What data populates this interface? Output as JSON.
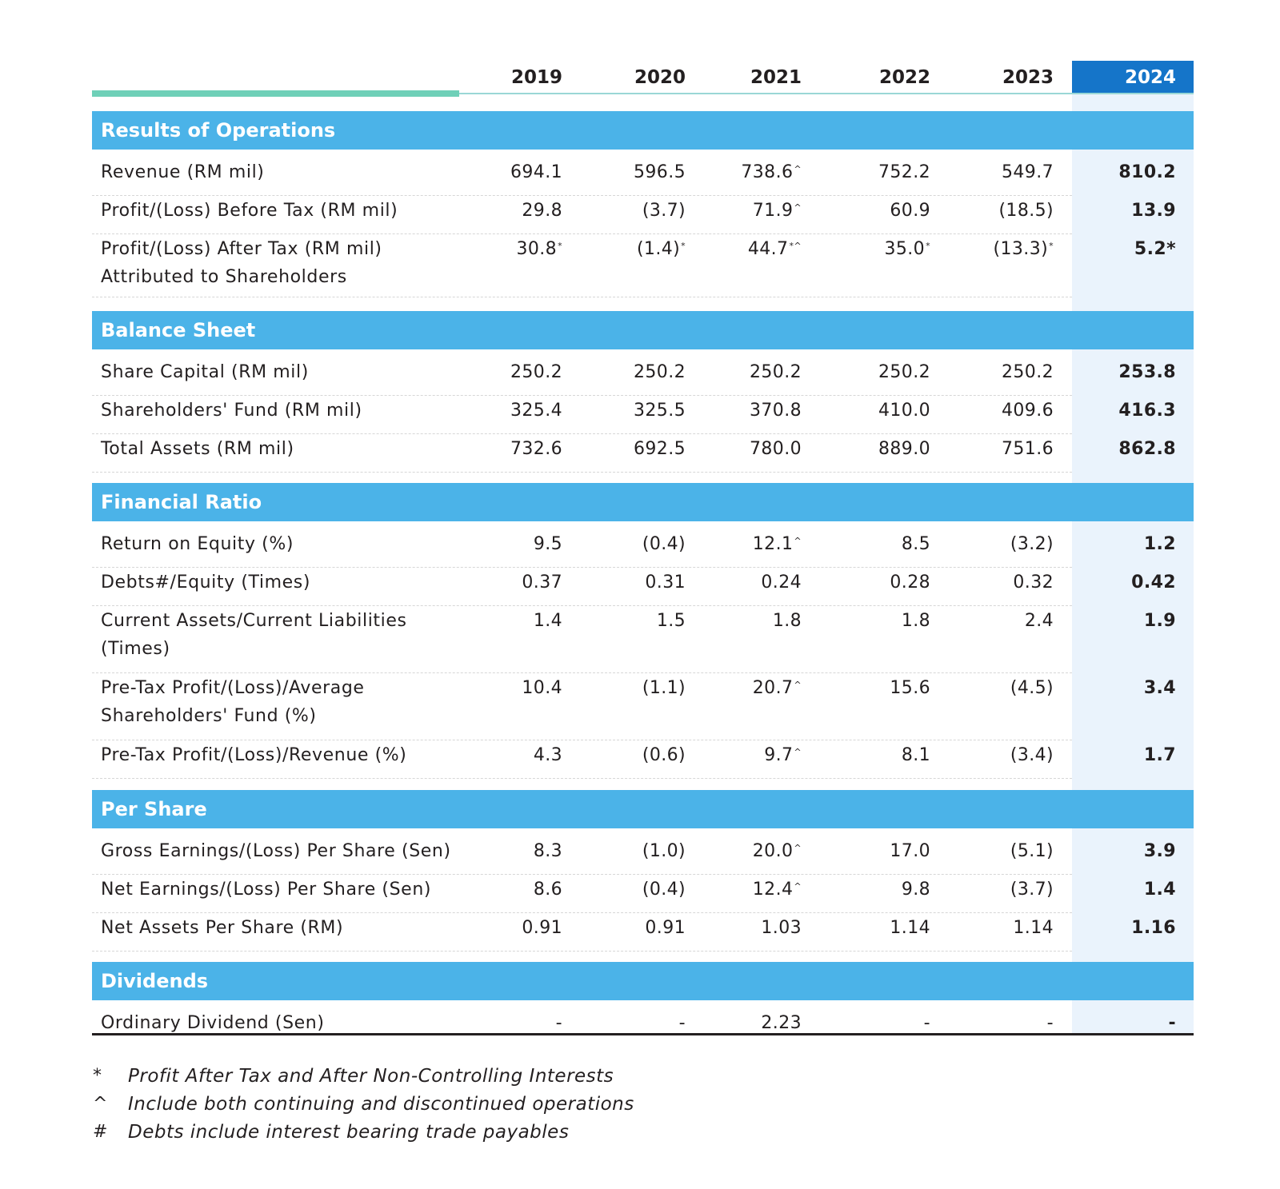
{
  "years": [
    "2019",
    "2020",
    "2021",
    "2022",
    "2023",
    "2024"
  ],
  "sections": [
    {
      "title": "Results of Operations",
      "rows": [
        {
          "label": "Revenue (RM mil)",
          "values": [
            "694.1",
            "596.5",
            "738.6",
            "752.2",
            "549.7",
            "810.2"
          ],
          "sups": [
            "",
            "",
            "^",
            "",
            "",
            ""
          ]
        },
        {
          "label": "Profit/(Loss) Before Tax (RM mil)",
          "values": [
            "29.8",
            "(3.7)",
            "71.9",
            "60.9",
            "(18.5)",
            "13.9"
          ],
          "sups": [
            "",
            "",
            "^",
            "",
            "",
            ""
          ]
        },
        {
          "label": "Profit/(Loss) After Tax (RM mil)\nAttributed to Shareholders",
          "values": [
            "30.8",
            "(1.4)",
            "44.7",
            "35.0",
            "(13.3)",
            "5.2*"
          ],
          "sups": [
            "*",
            "*",
            "*^",
            "*",
            "*",
            ""
          ]
        }
      ]
    },
    {
      "title": "Balance Sheet",
      "rows": [
        {
          "label": "Share Capital (RM mil)",
          "values": [
            "250.2",
            "250.2",
            "250.2",
            "250.2",
            "250.2",
            "253.8"
          ],
          "sups": [
            "",
            "",
            "",
            "",
            "",
            ""
          ]
        },
        {
          "label": "Shareholders' Fund (RM mil)",
          "values": [
            "325.4",
            "325.5",
            "370.8",
            "410.0",
            "409.6",
            "416.3"
          ],
          "sups": [
            "",
            "",
            "",
            "",
            "",
            ""
          ]
        },
        {
          "label": "Total Assets (RM mil)",
          "values": [
            "732.6",
            "692.5",
            "780.0",
            "889.0",
            "751.6",
            "862.8"
          ],
          "sups": [
            "",
            "",
            "",
            "",
            "",
            ""
          ]
        }
      ]
    },
    {
      "title": "Financial Ratio",
      "rows": [
        {
          "label": "Return on Equity (%)",
          "values": [
            "9.5",
            "(0.4)",
            "12.1",
            "8.5",
            "(3.2)",
            "1.2"
          ],
          "sups": [
            "",
            "",
            "^",
            "",
            "",
            ""
          ]
        },
        {
          "label": "Debts#/Equity (Times)",
          "values": [
            "0.37",
            "0.31",
            "0.24",
            "0.28",
            "0.32",
            "0.42"
          ],
          "sups": [
            "",
            "",
            "",
            "",
            "",
            ""
          ]
        },
        {
          "label": "Current Assets/Current Liabilities\n(Times)",
          "values": [
            "1.4",
            "1.5",
            "1.8",
            "1.8",
            "2.4",
            "1.9"
          ],
          "sups": [
            "",
            "",
            "",
            "",
            "",
            ""
          ]
        },
        {
          "label": "Pre-Tax Profit/(Loss)/Average\nShareholders' Fund (%)",
          "values": [
            "10.4",
            "(1.1)",
            "20.7",
            "15.6",
            "(4.5)",
            "3.4"
          ],
          "sups": [
            "",
            "",
            "^",
            "",
            "",
            ""
          ]
        },
        {
          "label": "Pre-Tax Profit/(Loss)/Revenue (%)",
          "values": [
            "4.3",
            "(0.6)",
            "9.7",
            "8.1",
            "(3.4)",
            "1.7"
          ],
          "sups": [
            "",
            "",
            "^",
            "",
            "",
            ""
          ]
        }
      ]
    },
    {
      "title": "Per Share",
      "rows": [
        {
          "label": "Gross Earnings/(Loss) Per Share (Sen)",
          "values": [
            "8.3",
            "(1.0)",
            "20.0",
            "17.0",
            "(5.1)",
            "3.9"
          ],
          "sups": [
            "",
            "",
            "^",
            "",
            "",
            ""
          ]
        },
        {
          "label": "Net Earnings/(Loss) Per Share (Sen)",
          "values": [
            "8.6",
            "(0.4)",
            "12.4",
            "9.8",
            "(3.7)",
            "1.4"
          ],
          "sups": [
            "",
            "",
            "^",
            "",
            "",
            ""
          ]
        },
        {
          "label": "Net Assets Per Share (RM)",
          "values": [
            "0.91",
            "0.91",
            "1.03",
            "1.14",
            "1.14",
            "1.16"
          ],
          "sups": [
            "",
            "",
            "",
            "",
            "",
            ""
          ]
        }
      ]
    },
    {
      "title": "Dividends",
      "rows": [
        {
          "label": "Ordinary Dividend (Sen)",
          "values": [
            "-",
            "-",
            "2.23",
            "-",
            "-",
            "-"
          ],
          "sups": [
            "",
            "",
            "",
            "",
            "",
            ""
          ]
        }
      ]
    }
  ],
  "footnotes": [
    {
      "symbol": "*",
      "text": "Profit After Tax and After Non-Controlling Interests"
    },
    {
      "symbol": "^",
      "text": "Include both continuing and discontinued operations"
    },
    {
      "symbol": "#",
      "text": "Debts include interest bearing trade payables"
    }
  ],
  "colors": {
    "section_bar": "#4bb3e8",
    "highlight_year": "#1575c9",
    "highlight_column": "#eaf3fc",
    "rule_green": "#6fd0b8"
  }
}
